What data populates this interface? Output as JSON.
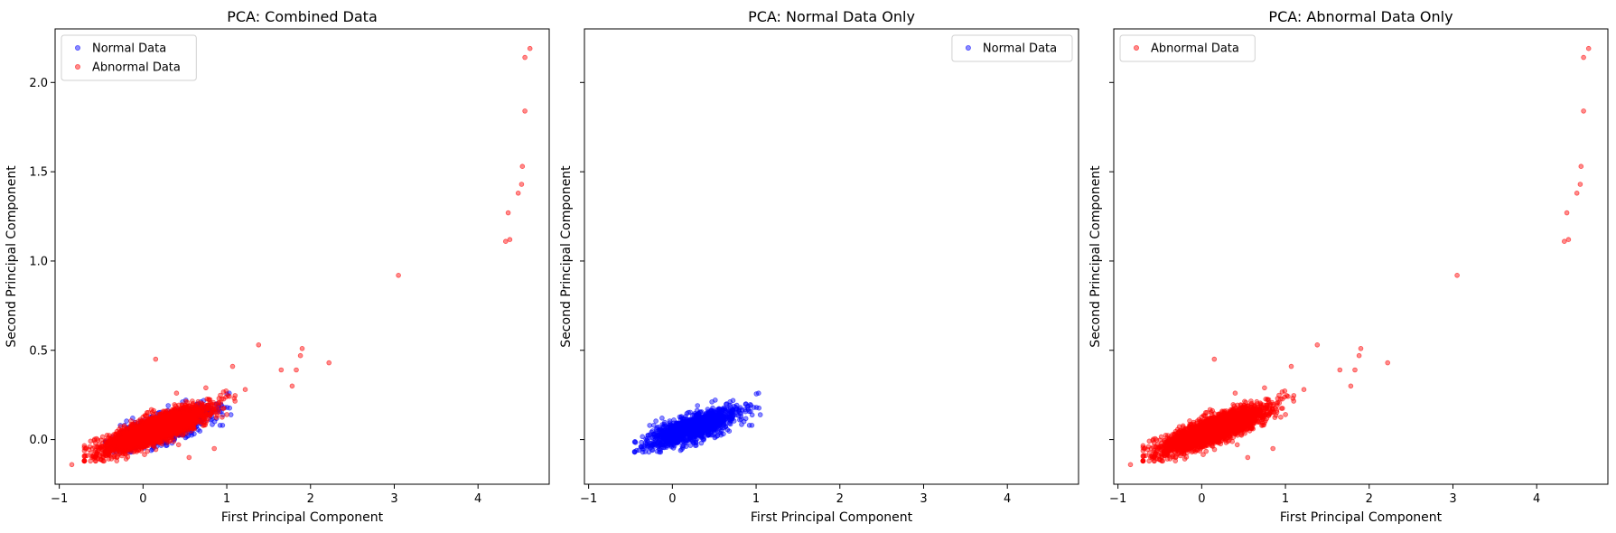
{
  "chart_data": [
    {
      "type": "scatter",
      "title": "PCA: Combined Data",
      "xlabel": "First Principal Component",
      "ylabel": "Second Principal Component",
      "xlim": [
        -1.05,
        4.85
      ],
      "ylim": [
        -0.25,
        2.3
      ],
      "xticks": [
        -1,
        0,
        1,
        2,
        3,
        4
      ],
      "yticks": [
        0.0,
        0.5,
        1.0,
        1.5,
        2.0
      ],
      "ytick_labels_visible": true,
      "grid": false,
      "legend": "upper left",
      "series": [
        {
          "name": "Normal Data",
          "color": "#0000ff",
          "cluster": {
            "x_range": [
              -0.45,
              1.05
            ],
            "y_range": [
              -0.07,
              0.26
            ],
            "n": 1500
          },
          "points": [
            [
              1.03,
              0.26
            ],
            [
              0.95,
              0.08
            ],
            [
              0.92,
              0.08
            ],
            [
              0.65,
              0.17
            ],
            [
              -0.45,
              -0.07
            ],
            [
              0.3,
              0.19
            ],
            [
              0.6,
              0.11
            ]
          ]
        },
        {
          "name": "Abnormal Data",
          "color": "#ff0000",
          "cluster": {
            "x_range": [
              -0.7,
              1.1
            ],
            "y_range": [
              -0.12,
              0.29
            ],
            "n": 3000
          },
          "points": [
            [
              -0.85,
              -0.14
            ],
            [
              -0.7,
              -0.12
            ],
            [
              0.15,
              0.45
            ],
            [
              1.07,
              0.41
            ],
            [
              1.22,
              0.28
            ],
            [
              1.38,
              0.53
            ],
            [
              1.65,
              0.39
            ],
            [
              1.78,
              0.3
            ],
            [
              1.83,
              0.39
            ],
            [
              1.88,
              0.47
            ],
            [
              1.9,
              0.51
            ],
            [
              2.22,
              0.43
            ],
            [
              3.05,
              0.92
            ],
            [
              4.33,
              1.11
            ],
            [
              4.38,
              1.12
            ],
            [
              4.36,
              1.27
            ],
            [
              4.48,
              1.38
            ],
            [
              4.52,
              1.43
            ],
            [
              4.53,
              1.53
            ],
            [
              4.56,
              1.84
            ],
            [
              4.56,
              2.14
            ],
            [
              4.62,
              2.19
            ],
            [
              0.4,
              0.26
            ],
            [
              0.75,
              0.29
            ],
            [
              0.9,
              0.19
            ],
            [
              0.85,
              -0.05
            ],
            [
              1.0,
              0.14
            ],
            [
              0.55,
              -0.1
            ]
          ]
        }
      ]
    },
    {
      "type": "scatter",
      "title": "PCA: Normal Data Only",
      "xlabel": "First Principal Component",
      "ylabel": "Second Principal Component",
      "xlim": [
        -1.05,
        4.85
      ],
      "ylim": [
        -0.25,
        2.3
      ],
      "xticks": [
        -1,
        0,
        1,
        2,
        3,
        4
      ],
      "yticks": [
        0.0,
        0.5,
        1.0,
        1.5,
        2.0
      ],
      "ytick_labels_visible": false,
      "grid": false,
      "legend": "upper right",
      "series": [
        {
          "name": "Normal Data",
          "color": "#0000ff",
          "cluster": {
            "x_range": [
              -0.45,
              1.05
            ],
            "y_range": [
              -0.07,
              0.26
            ],
            "n": 1500
          },
          "points": [
            [
              1.03,
              0.26
            ],
            [
              0.95,
              0.08
            ],
            [
              0.92,
              0.08
            ],
            [
              0.65,
              0.17
            ],
            [
              -0.45,
              -0.07
            ],
            [
              0.3,
              0.19
            ],
            [
              0.6,
              0.11
            ]
          ]
        }
      ]
    },
    {
      "type": "scatter",
      "title": "PCA: Abnormal Data Only",
      "xlabel": "First Principal Component",
      "ylabel": "Second Principal Component",
      "xlim": [
        -1.05,
        4.85
      ],
      "ylim": [
        -0.25,
        2.3
      ],
      "xticks": [
        -1,
        0,
        1,
        2,
        3,
        4
      ],
      "yticks": [
        0.0,
        0.5,
        1.0,
        1.5,
        2.0
      ],
      "ytick_labels_visible": false,
      "grid": false,
      "legend": "upper left",
      "series": [
        {
          "name": "Abnormal Data",
          "color": "#ff0000",
          "cluster": {
            "x_range": [
              -0.7,
              1.1
            ],
            "y_range": [
              -0.12,
              0.29
            ],
            "n": 3000
          },
          "points": [
            [
              -0.85,
              -0.14
            ],
            [
              -0.7,
              -0.12
            ],
            [
              0.15,
              0.45
            ],
            [
              1.07,
              0.41
            ],
            [
              1.22,
              0.28
            ],
            [
              1.38,
              0.53
            ],
            [
              1.65,
              0.39
            ],
            [
              1.78,
              0.3
            ],
            [
              1.83,
              0.39
            ],
            [
              1.88,
              0.47
            ],
            [
              1.9,
              0.51
            ],
            [
              2.22,
              0.43
            ],
            [
              3.05,
              0.92
            ],
            [
              4.33,
              1.11
            ],
            [
              4.38,
              1.12
            ],
            [
              4.36,
              1.27
            ],
            [
              4.48,
              1.38
            ],
            [
              4.52,
              1.43
            ],
            [
              4.53,
              1.53
            ],
            [
              4.56,
              1.84
            ],
            [
              4.56,
              2.14
            ],
            [
              4.62,
              2.19
            ],
            [
              0.4,
              0.26
            ],
            [
              0.75,
              0.29
            ],
            [
              0.9,
              0.19
            ],
            [
              0.85,
              -0.05
            ],
            [
              1.0,
              0.14
            ],
            [
              0.55,
              -0.1
            ]
          ]
        }
      ]
    }
  ]
}
